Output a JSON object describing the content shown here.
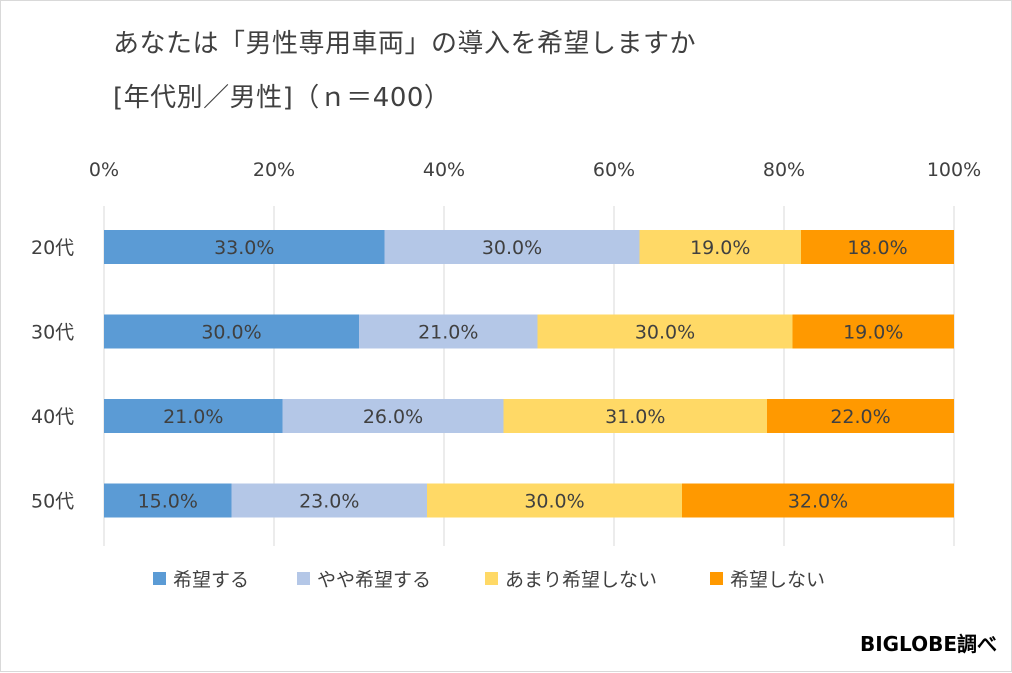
{
  "title_line1": "あなたは「男性専用車両」の導入を希望しますか",
  "title_line2": "[年代別／男性]（ｎ＝400）",
  "credit": "BIGLOBE調べ",
  "chart_data": {
    "type": "bar",
    "orientation": "horizontal",
    "stacked": "percent",
    "categories": [
      "20代",
      "30代",
      "40代",
      "50代"
    ],
    "series": [
      {
        "name": "希望する",
        "color": "#5b9bd5",
        "values": [
          33.0,
          30.0,
          21.0,
          15.0
        ]
      },
      {
        "name": "やや希望する",
        "color": "#b4c7e7",
        "values": [
          30.0,
          21.0,
          26.0,
          23.0
        ]
      },
      {
        "name": "あまり希望しない",
        "color": "#ffd966",
        "values": [
          19.0,
          30.0,
          31.0,
          30.0
        ]
      },
      {
        "name": "希望しない",
        "color": "#ff9900",
        "values": [
          18.0,
          19.0,
          22.0,
          32.0
        ]
      }
    ],
    "xlim": [
      0,
      100
    ],
    "xticks": [
      "0%",
      "20%",
      "40%",
      "60%",
      "80%",
      "100%"
    ],
    "value_format": "0.0%",
    "xaxis_position": "top",
    "grid": true,
    "legend_position": "bottom"
  }
}
